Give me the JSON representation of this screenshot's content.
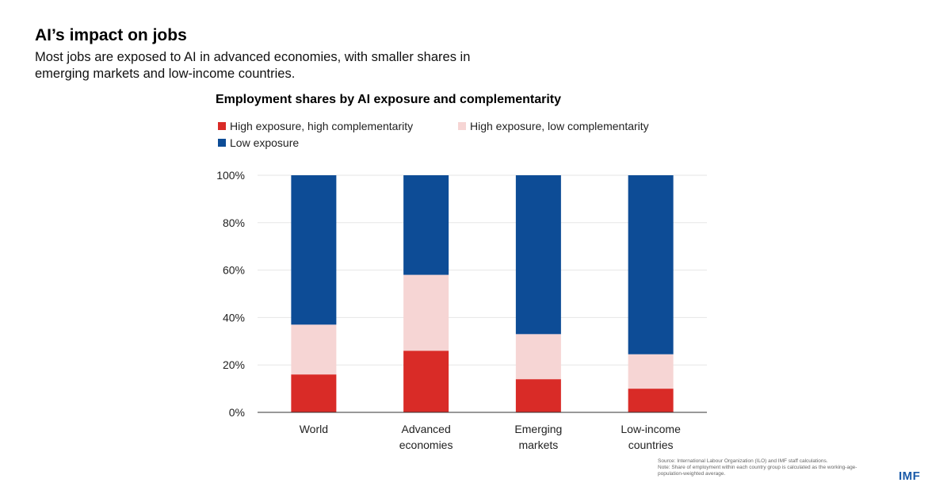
{
  "header": {
    "title": "AI’s impact on jobs",
    "subtitle": "Most jobs are exposed to AI in advanced economies, with smaller shares in emerging markets and low-income countries."
  },
  "footer": {
    "source": "Source: International Labour Organization (ILO) and IMF staff calculations.",
    "note": "Note: Share of employment within each country group is calculated as the working-age-population-weighted average.",
    "logo_text": "IMF"
  },
  "colors": {
    "high_high": "#d92b27",
    "high_low": "#f6d5d4",
    "low": "#0d4c96",
    "logo": "#1a5aa8",
    "axis": "#333333",
    "grid": "#e6e6e6"
  },
  "chart_data": {
    "type": "bar",
    "stacked": true,
    "title": "Employment shares by AI exposure and complementarity",
    "categories": [
      [
        "World"
      ],
      [
        "Advanced",
        "economies"
      ],
      [
        "Emerging",
        "markets"
      ],
      [
        "Low-income",
        "countries"
      ]
    ],
    "series": [
      {
        "name": "High exposure, high complementarity",
        "color_key": "high_high",
        "values": [
          16,
          26,
          14,
          10
        ]
      },
      {
        "name": "High exposure, low complementarity",
        "color_key": "high_low",
        "values": [
          21,
          32,
          19,
          14.5
        ]
      },
      {
        "name": "Low exposure",
        "color_key": "low",
        "values": [
          63,
          42,
          67,
          75.5
        ]
      }
    ],
    "ylim": [
      0,
      100
    ],
    "yticks": [
      0,
      20,
      40,
      60,
      80,
      100
    ],
    "ytick_labels": [
      "0%",
      "20%",
      "40%",
      "60%",
      "80%",
      "100%"
    ],
    "xlabel": "",
    "ylabel": "",
    "grid": "horizontal",
    "legend_position": "top-left"
  }
}
